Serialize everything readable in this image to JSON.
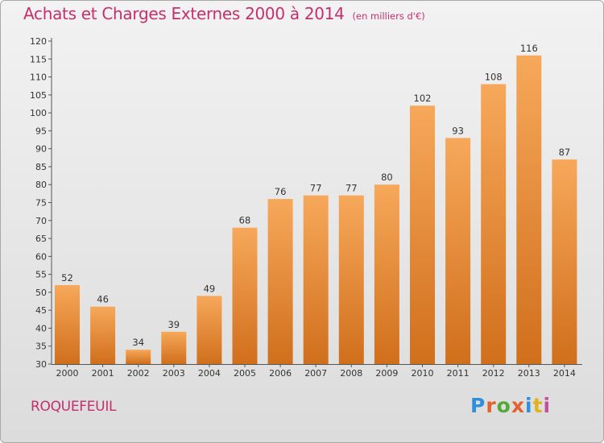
{
  "title": "Achats et Charges Externes 2000 à 2014",
  "unit_note": "(en milliers d'€)",
  "commune": "ROQUEFEUIL",
  "logo": {
    "text": "Proxiti",
    "colors": [
      "#2f8fd8",
      "#e2622f",
      "#57a83a",
      "#e2622f",
      "#2f8fd8",
      "#e0b21c",
      "#c44fa0"
    ]
  },
  "colors": {
    "title": "#c4306b",
    "bar_light": "#f7a85a",
    "bar_dark": "#d06f1c",
    "background_top": "#f2f2f2",
    "background_bottom": "#dcdcdc"
  },
  "chart_data": {
    "type": "bar",
    "categories": [
      "2000",
      "2001",
      "2002",
      "2003",
      "2004",
      "2005",
      "2006",
      "2007",
      "2008",
      "2009",
      "2010",
      "2011",
      "2012",
      "2013",
      "2014"
    ],
    "values": [
      52,
      46,
      34,
      39,
      49,
      68,
      76,
      77,
      77,
      80,
      102,
      93,
      108,
      116,
      87
    ],
    "ylim": [
      30,
      120
    ],
    "yticks": [
      30,
      35,
      40,
      45,
      50,
      55,
      60,
      65,
      70,
      75,
      80,
      85,
      90,
      95,
      100,
      105,
      110,
      115,
      120
    ],
    "grid": false,
    "data_labels": true
  }
}
